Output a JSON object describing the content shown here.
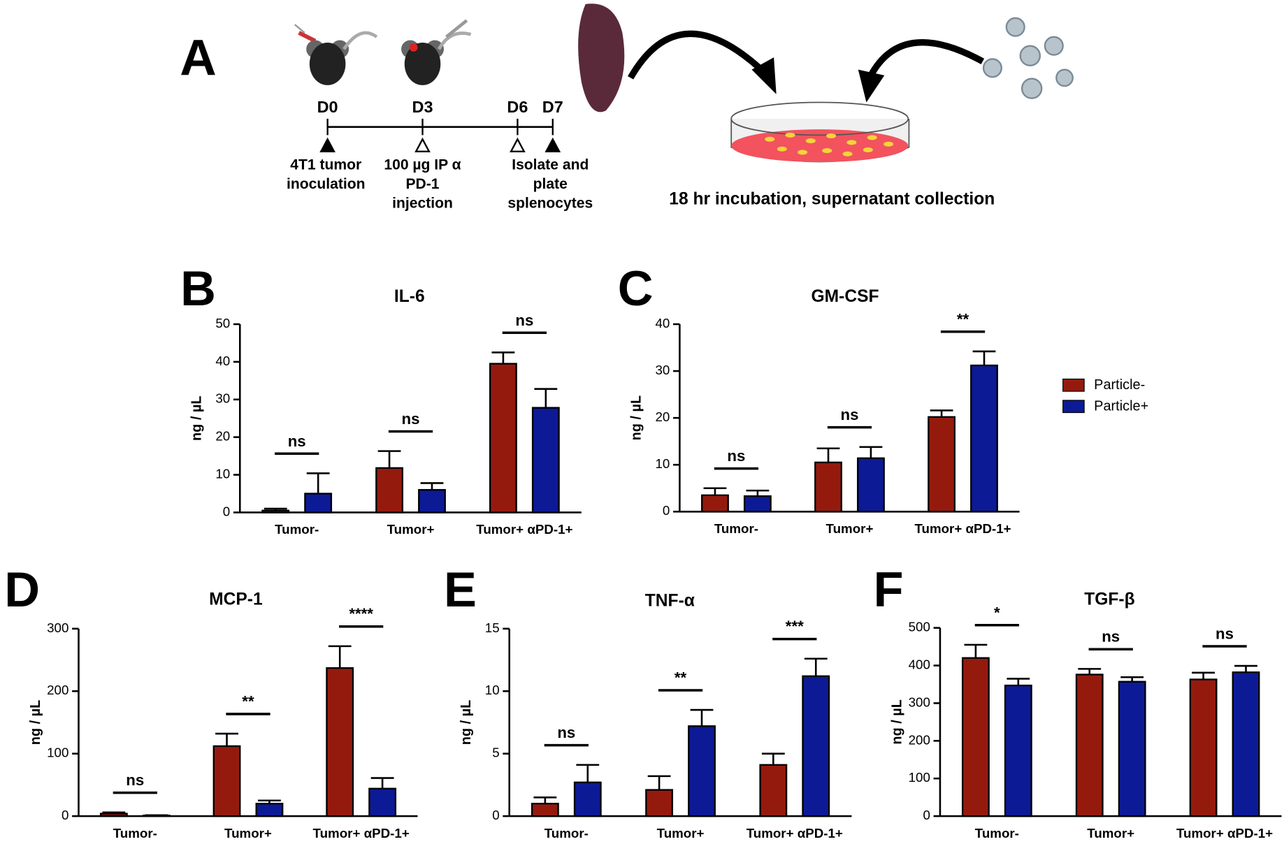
{
  "diagram": {
    "panel": "A",
    "timepoints": [
      "D0",
      "D3",
      "D6",
      "D7"
    ],
    "events": [
      [
        "4T1 tumor",
        "inoculation"
      ],
      [
        "100 µg IP α",
        "PD-1",
        "injection"
      ],
      [
        "Isolate and",
        "plate",
        "splenocytes"
      ]
    ],
    "caption": "18 hr incubation, supernatant collection"
  },
  "chart_data": [
    {
      "type": "bar",
      "panel": "B",
      "title": "IL-6",
      "y_label": "ng / µL",
      "categories": [
        "Tumor-",
        "Tumor+",
        "Tumor+ αPD-1+"
      ],
      "series": [
        {
          "name": "Particle-",
          "color": "#951a0e",
          "values": [
            0.5,
            11.8,
            39.5
          ],
          "errors": [
            0.5,
            4.5,
            3
          ]
        },
        {
          "name": "Particle+",
          "color": "#0c1a96",
          "values": [
            5,
            6,
            27.8
          ],
          "errors": [
            5.4,
            1.8,
            5
          ]
        }
      ],
      "significance": [
        "ns",
        "ns",
        "ns"
      ],
      "ylim": [
        0,
        50
      ],
      "yticks": [
        0,
        10,
        20,
        30,
        40,
        50
      ]
    },
    {
      "type": "bar",
      "panel": "C",
      "title": "GM-CSF",
      "y_label": "ng / µL",
      "categories": [
        "Tumor-",
        "Tumor+",
        "Tumor+ αPD-1+"
      ],
      "series": [
        {
          "name": "Particle-",
          "color": "#951a0e",
          "values": [
            3.5,
            10.5,
            20.2
          ],
          "errors": [
            1.5,
            3,
            1.4
          ]
        },
        {
          "name": "Particle+",
          "color": "#0c1a96",
          "values": [
            3.3,
            11.4,
            31.2
          ],
          "errors": [
            1.2,
            2.4,
            3
          ]
        }
      ],
      "significance": [
        "ns",
        "ns",
        "**"
      ],
      "ylim": [
        0,
        40
      ],
      "yticks": [
        0,
        10,
        20,
        30,
        40
      ]
    },
    {
      "type": "bar",
      "panel": "D",
      "title": "MCP-1",
      "y_label": "ng / µL",
      "categories": [
        "Tumor-",
        "Tumor+",
        "Tumor+ αPD-1+"
      ],
      "series": [
        {
          "name": "Particle-",
          "color": "#951a0e",
          "values": [
            4,
            112,
            237
          ],
          "errors": [
            2,
            20,
            35
          ]
        },
        {
          "name": "Particle+",
          "color": "#0c1a96",
          "values": [
            1,
            20,
            44
          ],
          "errors": [
            0.5,
            5,
            17
          ]
        }
      ],
      "significance": [
        "ns",
        "**",
        "****"
      ],
      "ylim": [
        0,
        300
      ],
      "yticks": [
        0,
        100,
        200,
        300
      ]
    },
    {
      "type": "bar",
      "panel": "E",
      "title": "TNF-α",
      "y_label": "ng / µL",
      "categories": [
        "Tumor-",
        "Tumor+",
        "Tumor+ αPD-1+"
      ],
      "series": [
        {
          "name": "Particle-",
          "color": "#951a0e",
          "values": [
            1.0,
            2.1,
            4.1
          ],
          "errors": [
            0.5,
            1.1,
            0.9
          ]
        },
        {
          "name": "Particle+",
          "color": "#0c1a96",
          "values": [
            2.7,
            7.2,
            11.2
          ],
          "errors": [
            1.4,
            1.3,
            1.4
          ]
        }
      ],
      "significance": [
        "ns",
        "**",
        "***"
      ],
      "ylim": [
        0,
        15
      ],
      "yticks": [
        0,
        5,
        10,
        15
      ]
    },
    {
      "type": "bar",
      "panel": "F",
      "title": "TGF-β",
      "y_label": "ng / µL",
      "categories": [
        "Tumor-",
        "Tumor+",
        "Tumor+ αPD-1+"
      ],
      "series": [
        {
          "name": "Particle-",
          "color": "#951a0e",
          "values": [
            420,
            376,
            363
          ],
          "errors": [
            35,
            15,
            18
          ]
        },
        {
          "name": "Particle+",
          "color": "#0c1a96",
          "values": [
            347,
            357,
            382
          ],
          "errors": [
            18,
            12,
            17
          ]
        }
      ],
      "significance": [
        "*",
        "ns",
        "ns"
      ],
      "ylim": [
        0,
        500
      ],
      "yticks": [
        0,
        100,
        200,
        300,
        400,
        500
      ]
    }
  ]
}
